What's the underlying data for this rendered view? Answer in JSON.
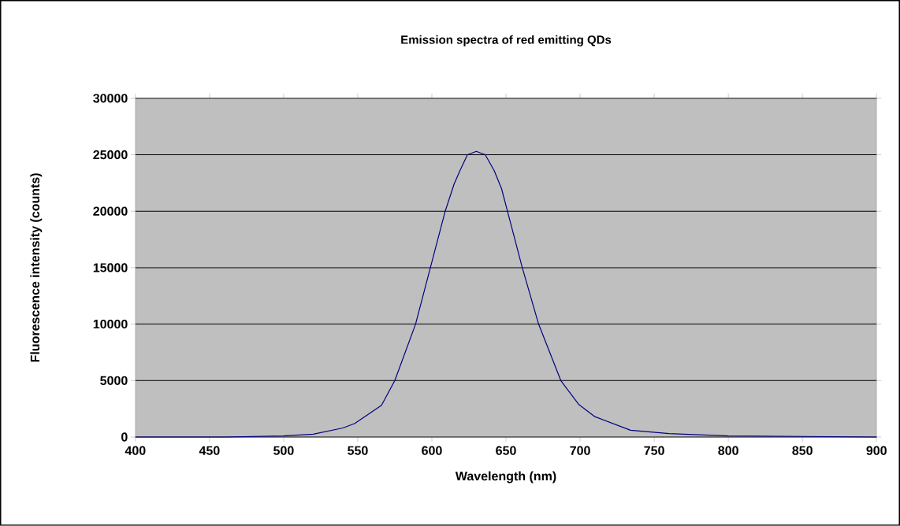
{
  "chart_data": {
    "type": "line",
    "title": "Emission spectra of red emitting QDs",
    "xlabel": "Wavelength (nm)",
    "ylabel": "Fluorescence intensity (counts)",
    "x": [
      400,
      460,
      500,
      520,
      540,
      548,
      566,
      575,
      589,
      599,
      609,
      615,
      619,
      624,
      630,
      636,
      642,
      647,
      651,
      661,
      672,
      687,
      699,
      710,
      734,
      760,
      800,
      850,
      900
    ],
    "series": [
      {
        "color": "#000080",
        "values": [
          0,
          0,
          100,
          250,
          800,
          1200,
          2800,
          5000,
          10000,
          15000,
          20000,
          22400,
          23600,
          25000,
          25300,
          25000,
          23600,
          22000,
          20000,
          15000,
          10000,
          5000,
          2900,
          1800,
          600,
          300,
          100,
          50,
          0
        ]
      }
    ],
    "xlim": [
      400,
      900
    ],
    "xticks": [
      400,
      450,
      500,
      550,
      600,
      650,
      700,
      750,
      800,
      850,
      900
    ],
    "ylim": [
      0,
      30000
    ],
    "yticks": [
      0,
      5000,
      10000,
      15000,
      20000,
      25000,
      30000
    ],
    "grid": "y"
  }
}
